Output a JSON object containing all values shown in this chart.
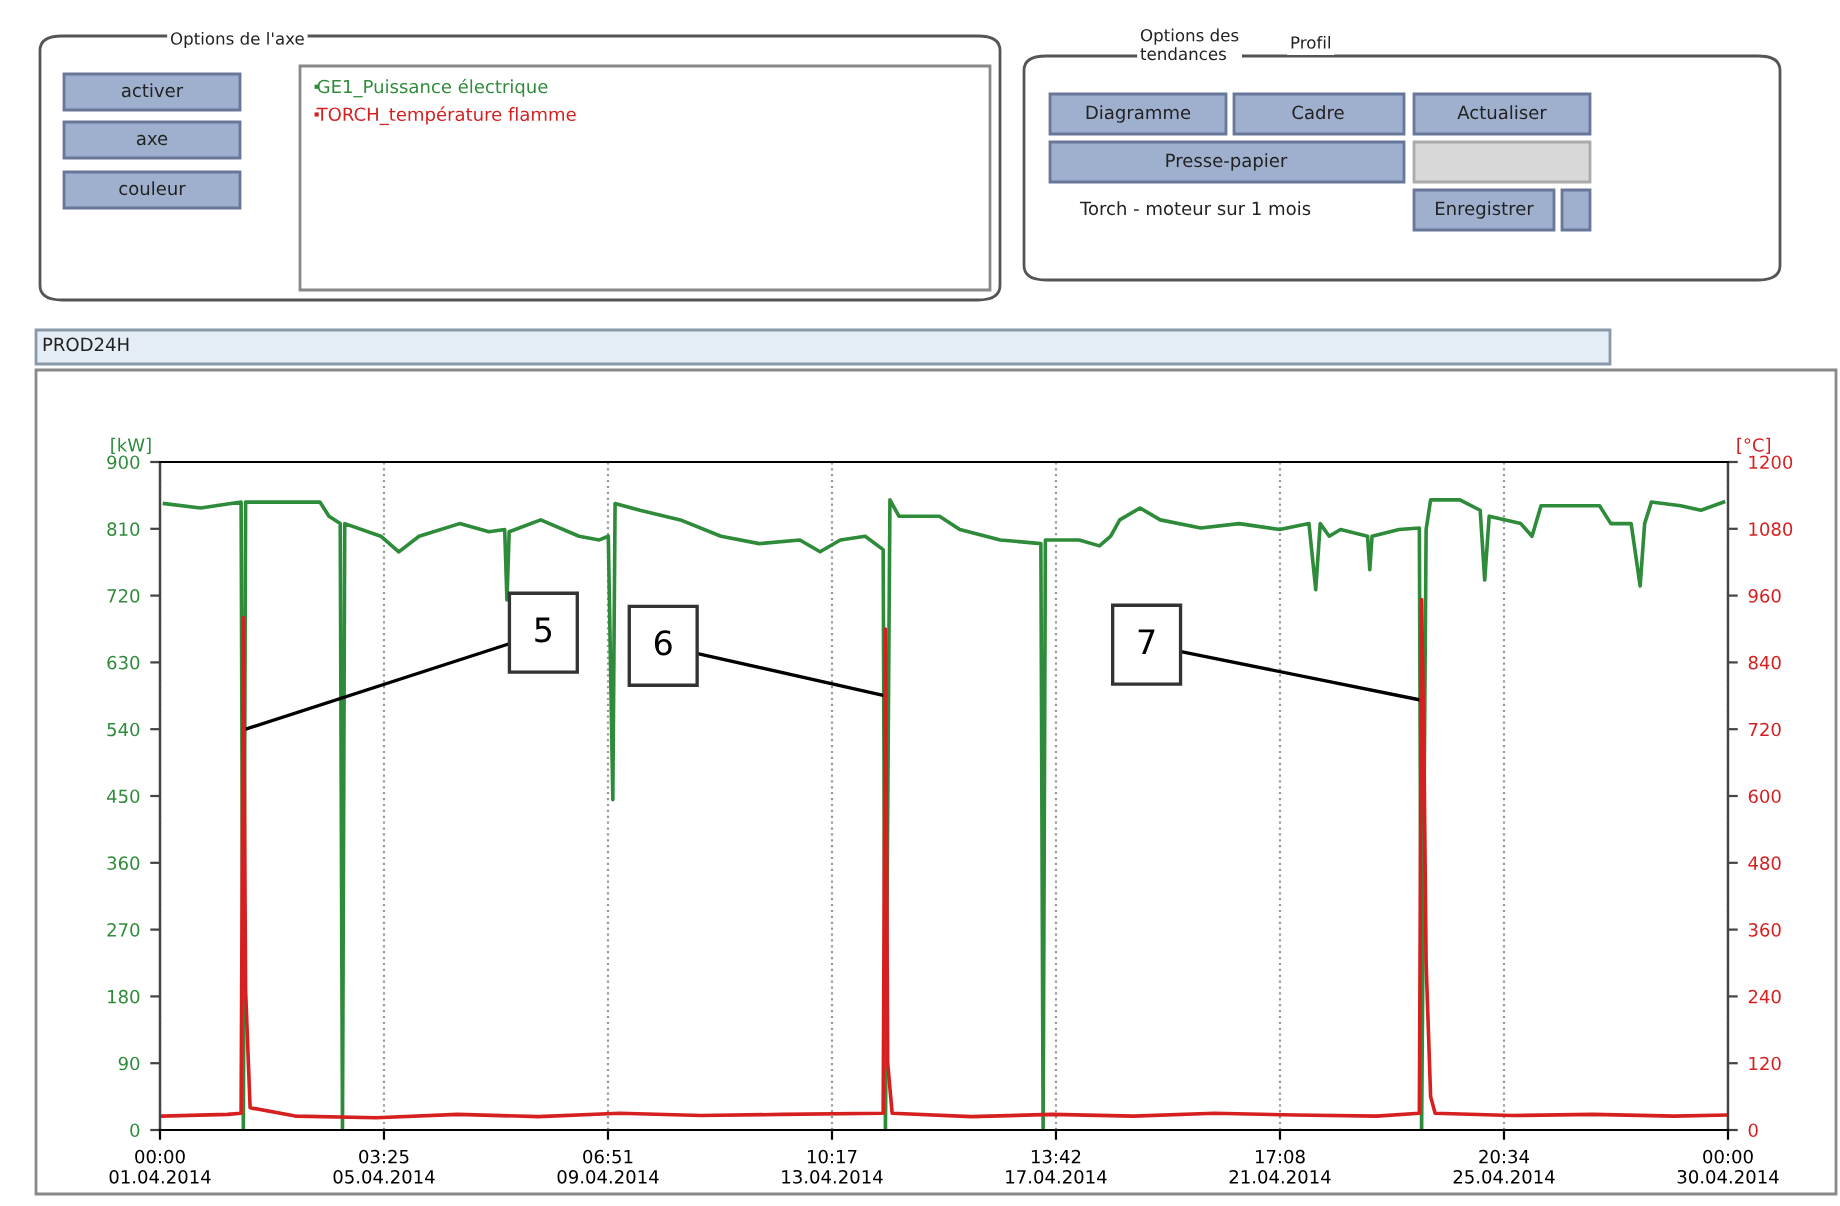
{
  "chart_data": {
    "type": "line",
    "ylabel": "[kW]",
    "y2label": "[°C]",
    "x": [
      "2014-04-01T02:00",
      "2014-04-01T18:00",
      "2014-04-02T12:00",
      "2014-04-02T13:00",
      "2014-04-02T14:00",
      "2014-04-03T23:00",
      "2014-04-04T03:00",
      "2014-04-04T08:00",
      "2014-04-04T09:00",
      "2014-04-04T10:00",
      "2014-04-05T02:00",
      "2014-04-05T10:00",
      "2014-04-05T19:00",
      "2014-04-06T13:00",
      "2014-04-07T02:00",
      "2014-04-07T09:00",
      "2014-04-07T10:00",
      "2014-04-07T11:00",
      "2014-04-08T01:00",
      "2014-04-08T18:00",
      "2014-04-09T03:00",
      "2014-04-09T07:00",
      "2014-04-09T09:00",
      "2014-04-09T10:00",
      "2014-04-09T21:00",
      "2014-04-10T15:00",
      "2014-04-11T09:00",
      "2014-04-12T02:00",
      "2014-04-12T20:00",
      "2014-04-13T05:00",
      "2014-04-13T14:00",
      "2014-04-14T01:00",
      "2014-04-14T09:00",
      "2014-04-14T10:00",
      "2014-04-14T12:00",
      "2014-04-14T16:00",
      "2014-04-15T10:00",
      "2014-04-15T19:00",
      "2014-04-16T13:00",
      "2014-04-17T07:00",
      "2014-04-17T08:00",
      "2014-04-17T09:00",
      "2014-04-18T00:00",
      "2014-04-18T09:00",
      "2014-04-18T14:00",
      "2014-04-18T18:00",
      "2014-04-19T03:00",
      "2014-04-19T12:00",
      "2014-04-20T06:00",
      "2014-04-20T23:00",
      "2014-04-21T17:00",
      "2014-04-22T06:00",
      "2014-04-22T09:00",
      "2014-04-22T11:00",
      "2014-04-22T15:00",
      "2014-04-22T20:00",
      "2014-04-23T08:00",
      "2014-04-23T09:00",
      "2014-04-23T10:00",
      "2014-04-23T22:00",
      "2014-04-24T07:00",
      "2014-04-24T08:00",
      "2014-04-24T10:00",
      "2014-04-24T12:00",
      "2014-04-25T01:00",
      "2014-04-25T10:00",
      "2014-04-25T12:00",
      "2014-04-25T14:00",
      "2014-04-26T04:00",
      "2014-04-26T09:00",
      "2014-04-26T13:00",
      "2014-04-27T15:00",
      "2014-04-27T20:00",
      "2014-04-28T05:00",
      "2014-04-28T09:00",
      "2014-04-28T11:00",
      "2014-04-28T14:00",
      "2014-04-29T03:00",
      "2014-04-29T12:00",
      "2014-04-29T22:00"
    ],
    "series": [
      {
        "name": "GE1_Puissance électrique",
        "color": "#2e8b3a",
        "values": [
          844,
          838,
          846,
          0,
          846,
          846,
          827,
          817,
          0,
          817,
          800,
          779,
          800,
          817,
          806,
          809,
          714,
          806,
          822,
          800,
          795,
          800,
          445,
          844,
          835,
          822,
          800,
          790,
          795,
          779,
          795,
          800,
          782,
          0,
          849,
          827,
          827,
          809,
          795,
          790,
          0,
          795,
          795,
          787,
          800,
          822,
          838,
          822,
          811,
          817,
          809,
          817,
          728,
          817,
          800,
          809,
          800,
          755,
          800,
          809,
          811,
          0,
          809,
          849,
          849,
          835,
          741,
          827,
          817,
          800,
          841,
          841,
          817,
          817,
          733,
          817,
          846,
          841,
          835,
          846
        ]
      },
      {
        "name": "TORCH_température flamme",
        "color": "#d62020",
        "axis": "y2",
        "x": [
          "2014-04-01T01:00",
          "2014-04-02T06:00",
          "2014-04-02T12:00",
          "2014-04-02T13:00",
          "2014-04-02T14:00",
          "2014-04-02T16:00",
          "2014-04-03T12:00",
          "2014-04-05T00:00",
          "2014-04-06T12:00",
          "2014-04-08T00:00",
          "2014-04-09T12:00",
          "2014-04-11T00:00",
          "2014-04-12T12:00",
          "2014-04-14T09:00",
          "2014-04-14T10:00",
          "2014-04-14T11:00",
          "2014-04-14T13:00",
          "2014-04-16T00:00",
          "2014-04-17T12:00",
          "2014-04-19T00:00",
          "2014-04-20T12:00",
          "2014-04-22T00:00",
          "2014-04-23T12:00",
          "2014-04-24T07:00",
          "2014-04-24T08:00",
          "2014-04-24T09:00",
          "2014-04-24T10:00",
          "2014-04-24T12:00",
          "2014-04-24T14:00",
          "2014-04-26T00:00",
          "2014-04-27T12:00",
          "2014-04-29T00:00",
          "2014-04-29T23:00"
        ],
        "values": [
          25,
          28,
          30,
          920,
          250,
          40,
          25,
          22,
          28,
          24,
          30,
          26,
          28,
          30,
          900,
          120,
          30,
          24,
          28,
          25,
          30,
          27,
          25,
          30,
          953,
          700,
          300,
          60,
          30,
          26,
          28,
          25,
          27
        ]
      }
    ],
    "xlim": [
      "2014-04-01T00:00",
      "2014-04-30T00:00"
    ],
    "xticks": [
      {
        "value": "2014-04-01T00:00",
        "label": "00:00\n01.04.2014"
      },
      {
        "value": "2014-04-05T03:25",
        "label": "03:25\n05.04.2014"
      },
      {
        "value": "2014-04-09T06:51",
        "label": "06:51\n09.04.2014"
      },
      {
        "value": "2014-04-13T10:17",
        "label": "10:17\n13.04.2014"
      },
      {
        "value": "2014-04-17T13:42",
        "label": "13:42\n17.04.2014"
      },
      {
        "value": "2014-04-21T17:08",
        "label": "17:08\n21.04.2014"
      },
      {
        "value": "2014-04-25T20:34",
        "label": "20:34\n25.04.2014"
      },
      {
        "value": "2014-04-30T00:00",
        "label": "00:00\n30.04.2014"
      }
    ],
    "ylim": [
      0,
      900
    ],
    "yticks": [
      0,
      90,
      180,
      270,
      360,
      450,
      540,
      630,
      720,
      810,
      900
    ],
    "y2lim": [
      0,
      1200
    ],
    "y2ticks": [
      0,
      120,
      240,
      360,
      480,
      600,
      720,
      840,
      960,
      1080,
      1200
    ],
    "grid": "x",
    "legend": "top left",
    "annotations": [
      "Options de l'axe",
      "activer",
      "axe",
      "couleur",
      "Options des\ntendances",
      "Profil",
      "Diagramme",
      "Cadre",
      "Actualiser",
      "Presse-papier",
      "Torch - moteur sur 1 mois",
      "Enregistrer",
      "PROD24H",
      {
        "text": "5",
        "x": "2014-04-02T13:00",
        "y": 539
      },
      {
        "text": "6",
        "x": "2014-04-14T10:00",
        "y": 585
      },
      {
        "text": "7",
        "x": "2014-04-24T08:00",
        "y": 579
      }
    ]
  }
}
